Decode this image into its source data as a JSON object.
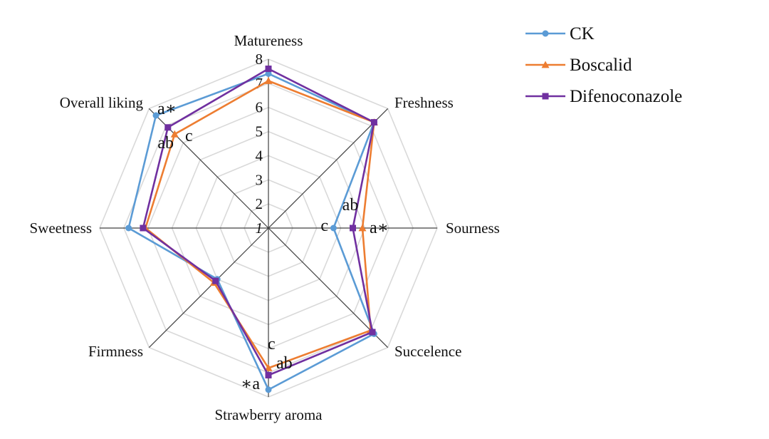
{
  "chart_data": {
    "type": "radar",
    "axes": [
      "Matureness",
      "Freshness",
      "Sourness",
      "Succelence",
      "Strawberry aroma",
      "Firmness",
      "Sweetness",
      "Overall liking"
    ],
    "rlim": [
      1,
      8
    ],
    "ticks": [
      "1",
      "2",
      "3",
      "4",
      "5",
      "6",
      "7",
      "8"
    ],
    "grid": true,
    "legend_position": "top-right",
    "series": [
      {
        "name": "CK",
        "color": "#5b9bd5",
        "marker": "circle",
        "values": [
          7.4,
          7.2,
          3.7,
          7.2,
          7.7,
          4.0,
          6.8,
          7.6
        ]
      },
      {
        "name": "Boscalid",
        "color": "#ed7d31",
        "marker": "triangle",
        "values": [
          7.1,
          7.2,
          4.9,
          7.0,
          6.8,
          4.2,
          6.1,
          6.5
        ]
      },
      {
        "name": "Difenoconazole",
        "color": "#7030a0",
        "marker": "square",
        "values": [
          7.6,
          7.2,
          4.5,
          7.1,
          7.1,
          4.1,
          6.2,
          6.9
        ]
      }
    ],
    "annotations": [
      {
        "id": "ann-overall-a",
        "text": "a∗"
      },
      {
        "id": "ann-overall-ab",
        "text": "ab"
      },
      {
        "id": "ann-overall-c",
        "text": "c"
      },
      {
        "id": "ann-sour-ab",
        "text": "ab"
      },
      {
        "id": "ann-sour-c",
        "text": "c"
      },
      {
        "id": "ann-sour-a",
        "text": "a∗"
      },
      {
        "id": "ann-aroma-c",
        "text": "c"
      },
      {
        "id": "ann-aroma-ab",
        "text": "ab"
      },
      {
        "id": "ann-aroma-a",
        "text": "∗a"
      }
    ]
  }
}
